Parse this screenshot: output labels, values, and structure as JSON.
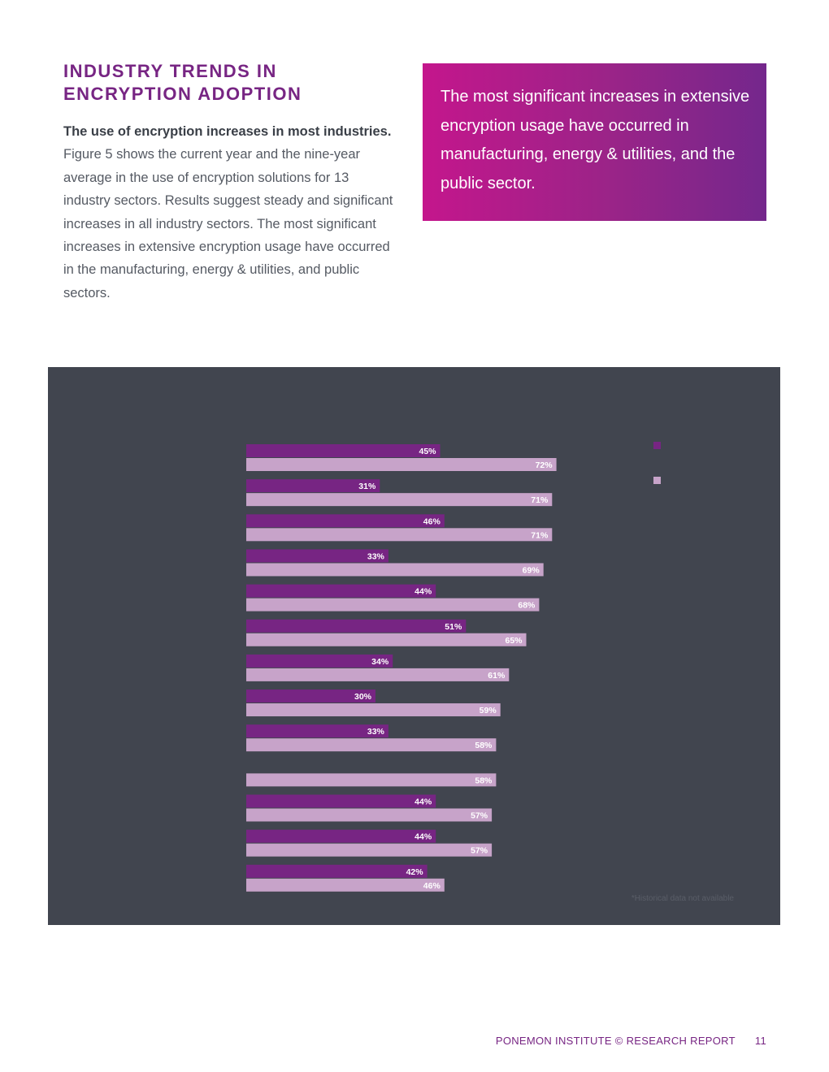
{
  "heading": {
    "line1": "INDUSTRY TRENDS IN",
    "line2": "ENCRYPTION ADOPTION"
  },
  "body": {
    "lead": "The use of encryption increases in most industries.",
    "text": "Figure 5 shows the current year and the nine-year average in the use of encryption solutions for 13 industry sectors. Results suggest steady and significant increases in all industry sectors. The most significant increases in extensive encryption usage have occurred in the manufacturing, energy & utilities, and public sectors."
  },
  "callout": {
    "text": "The most significant increases in extensive encryption usage have occurred in manufacturing, energy & utilities, and the public sector."
  },
  "chart_data": {
    "type": "bar",
    "orientation": "horizontal",
    "value_format": "percent",
    "xlim": [
      0,
      100
    ],
    "grid": false,
    "legend_position": "top-right",
    "series": [
      {
        "color": "#772583",
        "values": [
          45,
          31,
          46,
          33,
          44,
          51,
          34,
          30,
          33,
          null,
          44,
          44,
          42
        ]
      },
      {
        "color": "#c7a3c9",
        "values": [
          72,
          71,
          71,
          69,
          68,
          65,
          61,
          59,
          58,
          58,
          57,
          57,
          46
        ]
      }
    ]
  },
  "colors": {
    "accent": "#772583",
    "panel_bg": "#41454f",
    "bar_light": "#c7a3c9",
    "callout_start": "#c4168c",
    "callout_end": "#74278c"
  },
  "footnote": "*Historical data not available",
  "footer": {
    "label": "PONEMON INSTITUTE © RESEARCH REPORT",
    "page": "11"
  }
}
